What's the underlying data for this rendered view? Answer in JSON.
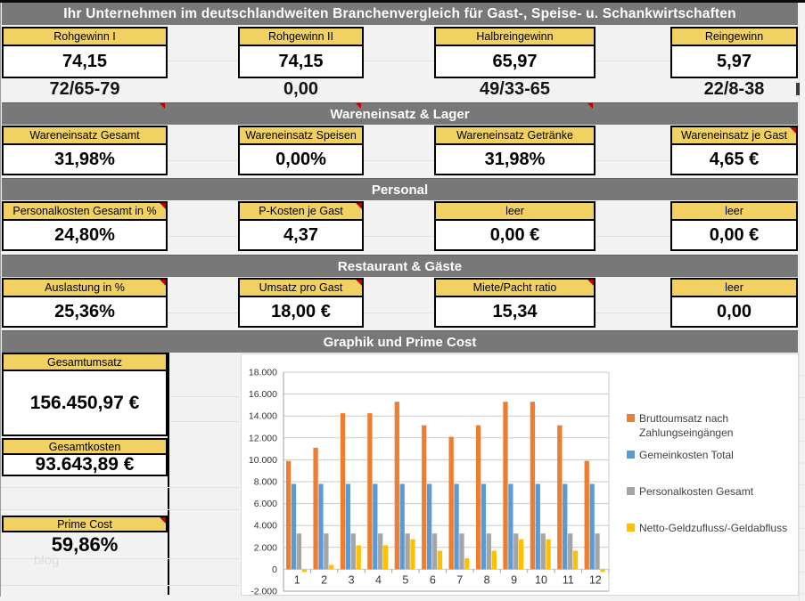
{
  "title": "Ihr Unternehmen im deutschlandweiten Branchenvergleich für Gast-, Speise- u. Schankwirtschaften",
  "sections": [
    {
      "title": "",
      "blocks": [
        {
          "label": "Rohgewinn I",
          "value": "74,15",
          "benchmark": "72/65-79"
        },
        {
          "label": "Rohgewinn II",
          "value": "74,15",
          "benchmark": "0,00"
        },
        {
          "label": "Halbreingewinn",
          "value": "65,97",
          "benchmark": "49/33-65"
        },
        {
          "label": "Reingewinn",
          "value": "5,97",
          "benchmark": "22/8-38"
        }
      ]
    },
    {
      "title": "Wareneinsatz & Lager",
      "blocks": [
        {
          "label": "Wareneinsatz Gesamt",
          "value": "31,98%"
        },
        {
          "label": "Wareneinsatz Speisen",
          "value": "0,00%"
        },
        {
          "label": "Wareneinsatz Getränke",
          "value": "31,98%"
        },
        {
          "label": "Wareneinsatz je Gast",
          "value": "4,65 €"
        }
      ]
    },
    {
      "title": "Personal",
      "blocks": [
        {
          "label": "Personalkosten Gesamt in %",
          "value": "24,80%"
        },
        {
          "label": "P-Kosten je Gast",
          "value": "4,37"
        },
        {
          "label": "leer",
          "value": "0,00 €"
        },
        {
          "label": "leer",
          "value": "0,00 €"
        }
      ]
    },
    {
      "title": "Restaurant & Gäste",
      "blocks": [
        {
          "label": "Auslastung in %",
          "value": "25,36%"
        },
        {
          "label": "Umsatz pro Gast",
          "value": "18,00 €"
        },
        {
          "label": "Miete/Pacht ratio",
          "value": "15,34"
        },
        {
          "label": "leer",
          "value": "0,00"
        }
      ]
    }
  ],
  "bottom": {
    "title": "Graphik und Prime Cost",
    "items": [
      {
        "label": "Gesamtumsatz",
        "value": "156.450,97 €"
      },
      {
        "label": "Gesamtkosten",
        "value": "93.643,89 €"
      },
      {
        "label": "Prime Cost",
        "value": "59,86%"
      }
    ],
    "watermark": "blog"
  },
  "colors": {
    "accent_yellow": "#F0D161",
    "section_gray": "#787878",
    "comment_red": "#C00000"
  },
  "chart_data": {
    "type": "bar",
    "categories": [
      "1",
      "2",
      "3",
      "4",
      "5",
      "6",
      "7",
      "8",
      "9",
      "10",
      "11",
      "12"
    ],
    "series": [
      {
        "name": "Bruttoumsatz nach Zahlungseingängen",
        "color": "#ED7D31",
        "values": [
          9900,
          11100,
          14250,
          14250,
          15300,
          13150,
          12100,
          13150,
          15300,
          15300,
          13150,
          9900
        ]
      },
      {
        "name": "Gemeinkosten Total",
        "color": "#5B9BD5",
        "values": [
          7800,
          7800,
          7800,
          7800,
          7800,
          7800,
          7800,
          7800,
          7800,
          7800,
          7800,
          7800
        ]
      },
      {
        "name": "Personalkosten Gesamt",
        "color": "#A5A5A5",
        "values": [
          3270,
          3270,
          3270,
          3270,
          3270,
          3270,
          3270,
          3270,
          3270,
          3270,
          3270,
          3270
        ]
      },
      {
        "name": "Netto-Geldzufluss/-Geldabfluss",
        "color": "#FFC000",
        "values": [
          -250,
          400,
          2200,
          2200,
          2750,
          1700,
          1000,
          1700,
          2750,
          2750,
          1700,
          -250
        ]
      }
    ],
    "title": "",
    "xlabel": "",
    "ylabel": "",
    "ylim": [
      -2000,
      18000
    ],
    "ytick": 2000,
    "grid": true,
    "legend_position": "right"
  }
}
